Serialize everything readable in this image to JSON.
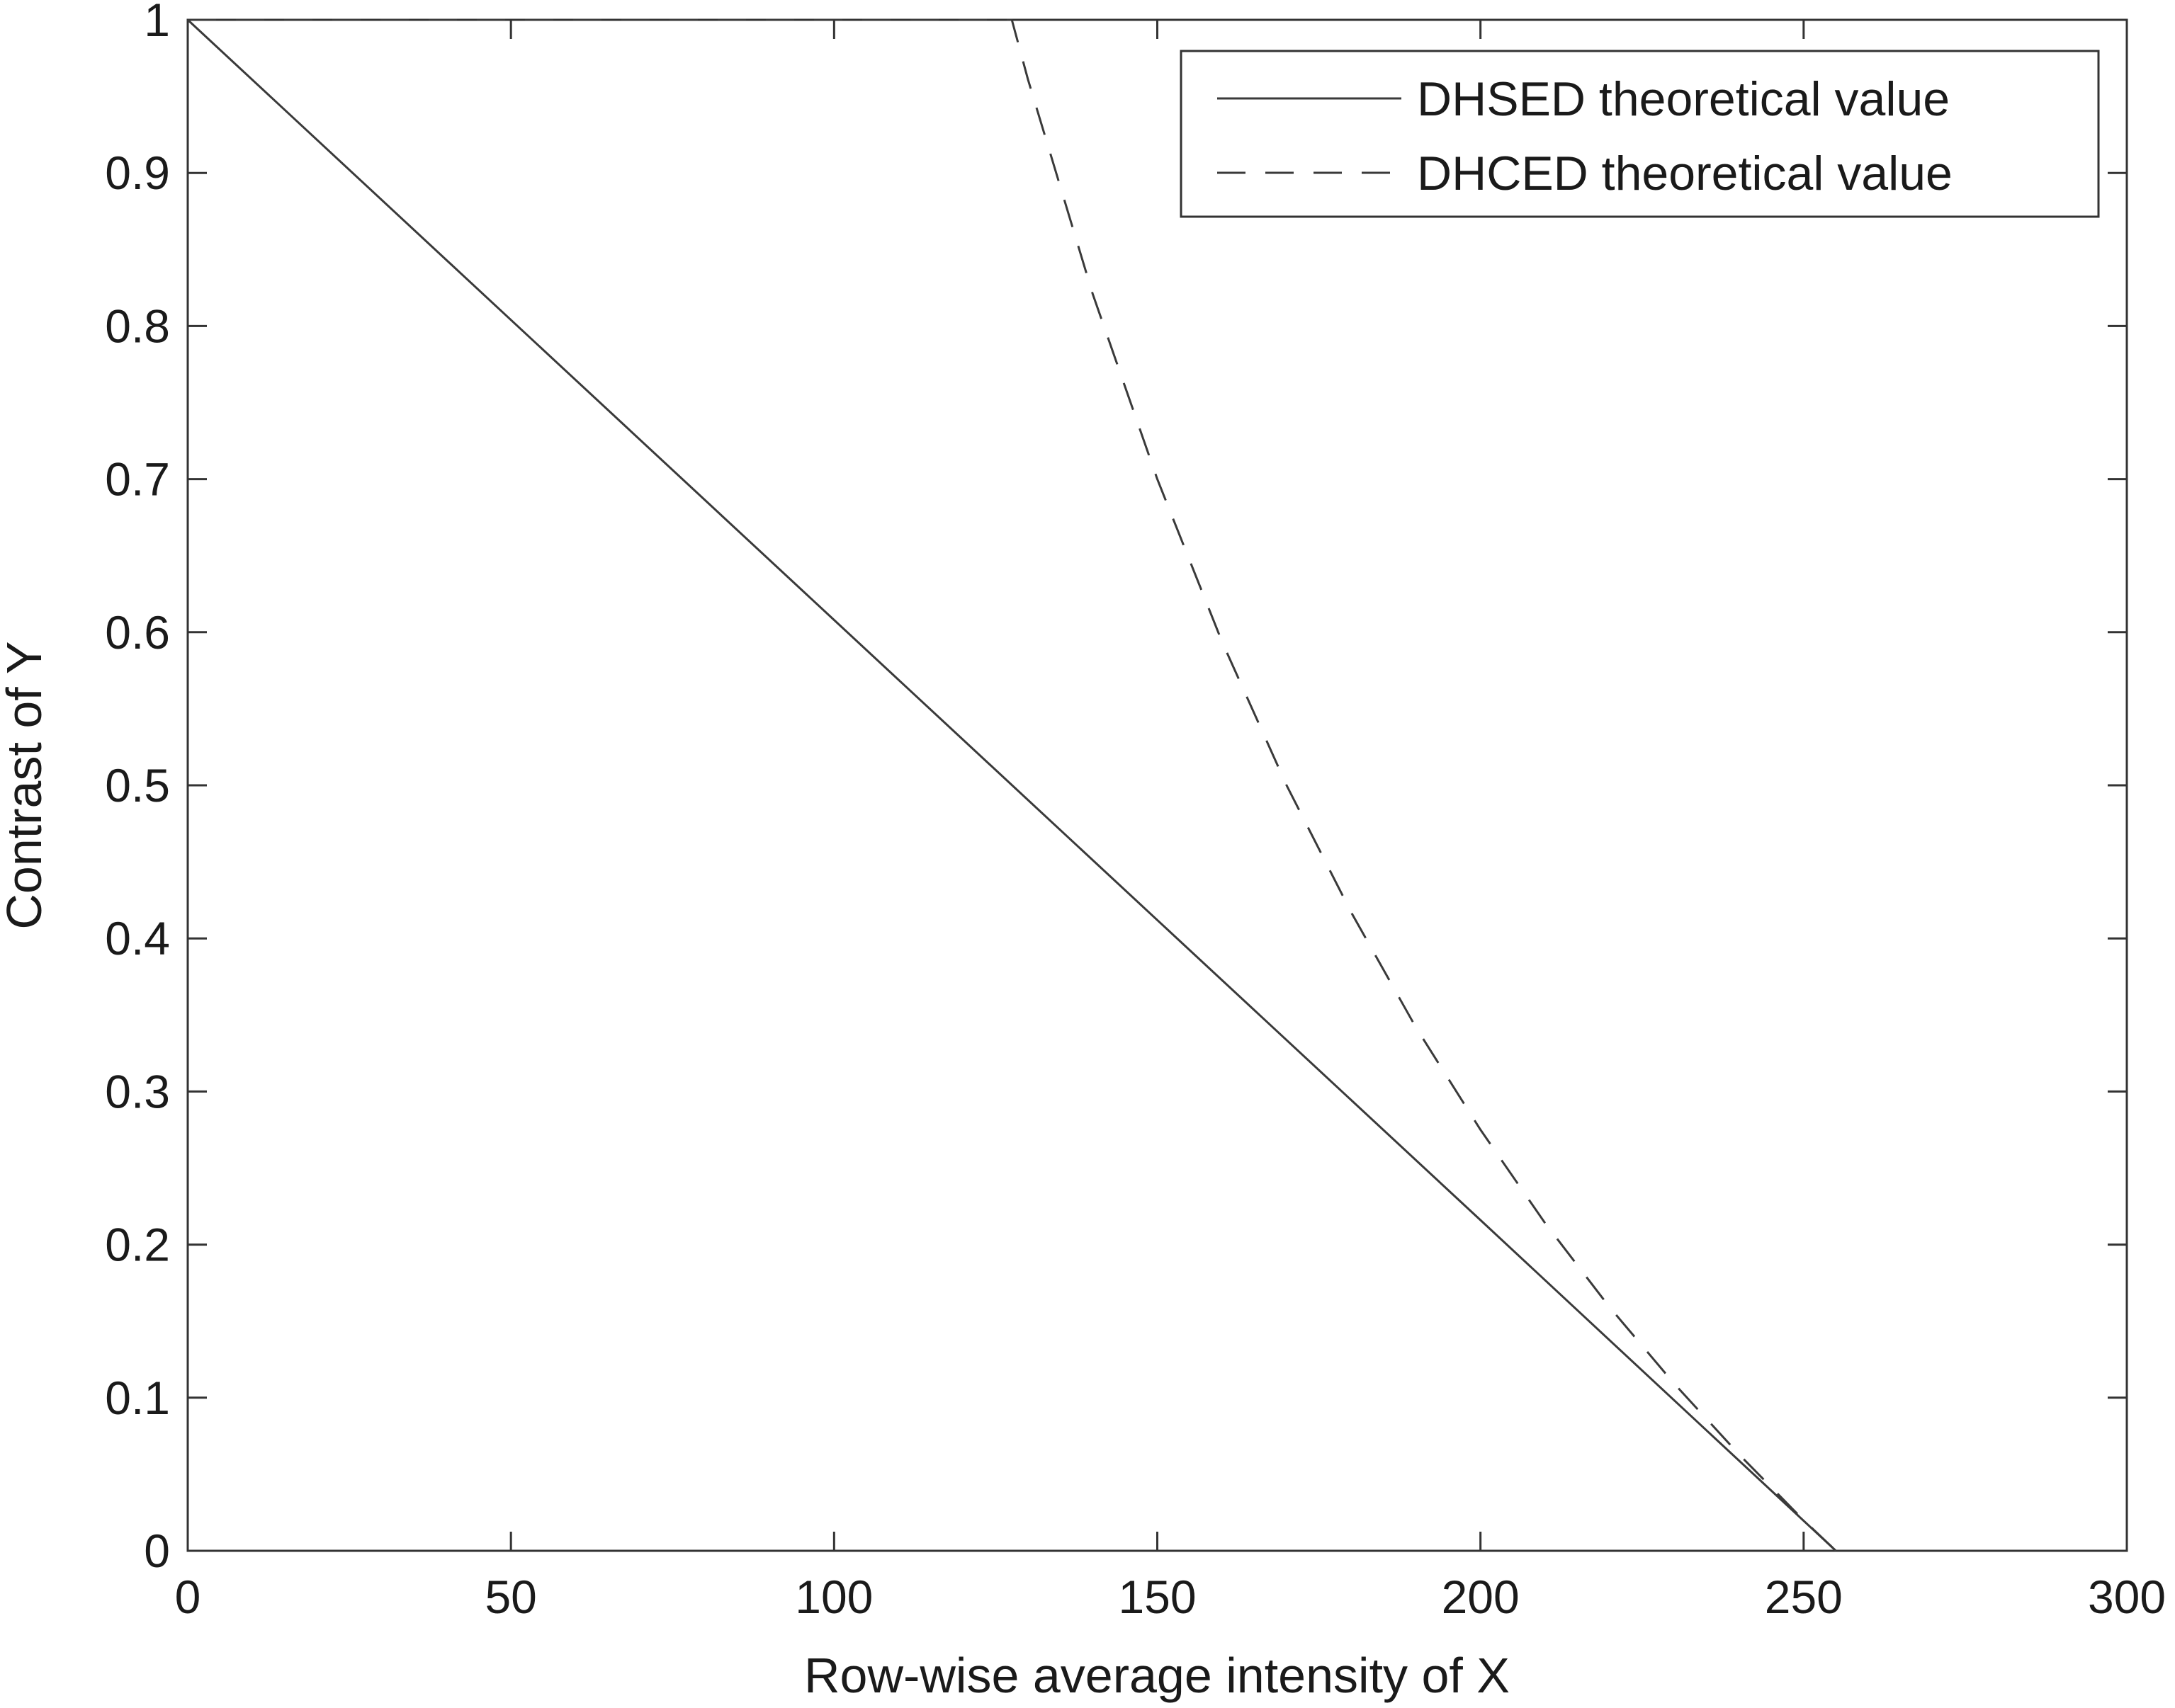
{
  "chart_data": {
    "type": "line",
    "title": "",
    "xlabel": "Row-wise average intensity of X",
    "ylabel": "Contrast of Y",
    "xlim": [
      0,
      300
    ],
    "ylim": [
      0,
      1
    ],
    "xticks": [
      0,
      50,
      100,
      150,
      200,
      250,
      300
    ],
    "yticks": [
      0,
      0.1,
      0.2,
      0.3,
      0.4,
      0.5,
      0.6,
      0.7,
      0.8,
      0.9,
      1
    ],
    "xtick_labels": [
      "0",
      "50",
      "100",
      "150",
      "200",
      "250",
      "300"
    ],
    "ytick_labels": [
      "0",
      "0.1",
      "0.2",
      "0.3",
      "0.4",
      "0.5",
      "0.6",
      "0.7",
      "0.8",
      "0.9",
      "1"
    ],
    "grid": false,
    "legend_position": "top-right",
    "series": [
      {
        "name": "DHSED theoretical value",
        "line_style": "solid",
        "color": "#3a3a3a",
        "x": [
          0,
          50,
          100,
          150,
          200,
          255
        ],
        "y": [
          1,
          0.804,
          0.608,
          0.412,
          0.216,
          0
        ]
      },
      {
        "name": "DHCED theoretical value",
        "line_style": "dashed",
        "color": "#3a3a3a",
        "x": [
          0,
          127.5,
          130,
          140,
          150,
          160,
          170,
          180,
          190,
          200,
          210,
          220,
          230,
          240,
          250,
          255
        ],
        "y": [
          1,
          1,
          0.961,
          0.821,
          0.7,
          0.594,
          0.5,
          0.417,
          0.342,
          0.275,
          0.214,
          0.159,
          0.109,
          0.063,
          0.02,
          0
        ]
      }
    ]
  }
}
